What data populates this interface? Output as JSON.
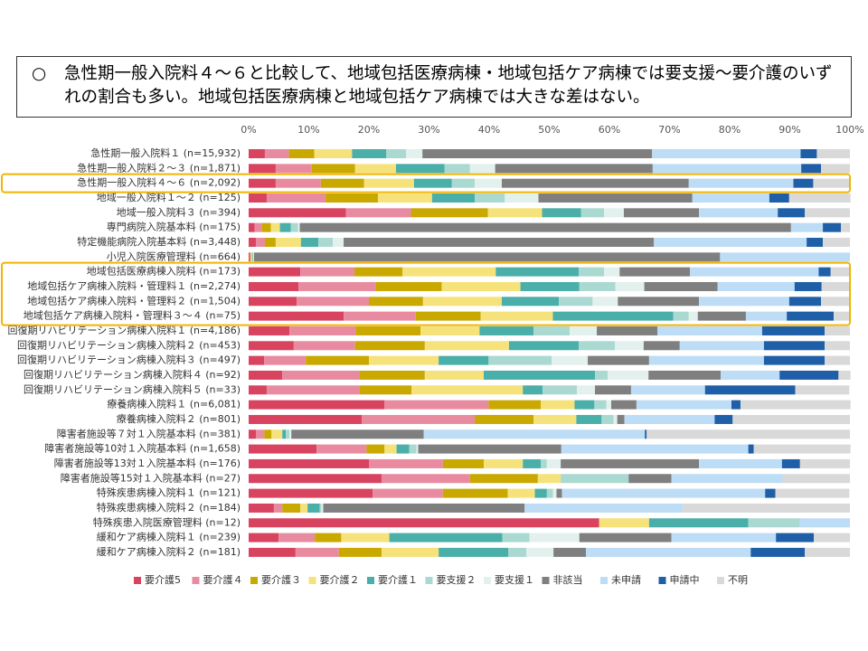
{
  "note": {
    "marker": "○",
    "text": "急性期一般入院料４～６と比較して、地域包括医療病棟・地域包括ケア病棟では要支援～要介護のいずれの割合も多い。地域包括医療病棟と地域包括ケア病棟では大きな差はない。"
  },
  "chart_data": {
    "type": "stacked_bar_horizontal",
    "categories": [
      "急性期一般入院料１ (n=15,932)",
      "急性期一般入院料２～３ (n=1,871)",
      "急性期一般入院料４～６ (n=2,092)",
      "地域一般入院料１～２ (n=125)",
      "地域一般入院料３ (n=394)",
      "専門病院入院基本料 (n=175)",
      "特定機能病院入院基本料 (n=3,448)",
      "小児入院医療管理料 (n=664)",
      "地域包括医療病棟入院料 (n=173)",
      "地域包括ケア病棟入院料・管理料１ (n=2,274)",
      "地域包括ケア病棟入院料・管理料２ (n=1,504)",
      "地域包括ケア病棟入院料・管理料３～４ (n=75)",
      "回復期リハビリテーション病棟入院料１ (n=4,186)",
      "回復期リハビリテーション病棟入院料２ (n=453)",
      "回復期リハビリテーション病棟入院料３ (n=497)",
      "回復期リハビリテーション病棟入院料４ (n=92)",
      "回復期リハビリテーション病棟入院料５ (n=33)",
      "療養病棟入院料１ (n=6,081)",
      "療養病棟入院料２ (n=801)",
      "障害者施設等７対１入院基本料 (n=381)",
      "障害者施設等10対１入院基本料 (n=1,658)",
      "障害者施設等13対１入院基本料 (n=176)",
      "障害者施設等15対１入院基本料 (n=27)",
      "特殊疾患病棟入院料１ (n=121)",
      "特殊疾患病棟入院料２ (n=184)",
      "特殊疾患入院医療管理料 (n=12)",
      "緩和ケア病棟入院料１ (n=239)",
      "緩和ケア病棟入院料２ (n=181)"
    ],
    "series": [
      {
        "name": "要介護5",
        "color": "#d8435f",
        "values": [
          2.7,
          4.5,
          4.5,
          3,
          16.2,
          1,
          1.2,
          0.2,
          8.6,
          8.3,
          8,
          15.8,
          6.8,
          7.5,
          2.6,
          5.6,
          3,
          22.6,
          18.8,
          1.2,
          11.3,
          20,
          22.1,
          20.6,
          4.2,
          58.3,
          5,
          7.8
        ]
      },
      {
        "name": "要介護４",
        "color": "#e98ba0",
        "values": [
          4,
          6,
          7.5,
          9.8,
          10.8,
          1.2,
          1.5,
          0.1,
          9,
          12.8,
          12,
          12,
          11,
          10.2,
          6.9,
          12.9,
          15.5,
          17.3,
          18.8,
          1.4,
          8.3,
          12.3,
          14.7,
          11.7,
          1.4,
          0,
          6,
          7.2
        ]
      },
      {
        "name": "要介護３",
        "color": "#c9a800",
        "values": [
          4.2,
          7.2,
          7.2,
          8.7,
          12.8,
          1.5,
          1.8,
          0.1,
          8,
          11,
          9,
          10.8,
          10.8,
          11.6,
          10.5,
          10.8,
          8.6,
          8.7,
          9.8,
          1.2,
          3,
          6.8,
          11.3,
          10.8,
          3,
          0,
          4.4,
          7.1
        ]
      },
      {
        "name": "要介護２",
        "color": "#f6e27b",
        "values": [
          6.3,
          6.8,
          8.3,
          9,
          9,
          1.5,
          4.2,
          0.2,
          15.5,
          13.1,
          13.1,
          12,
          9.8,
          14,
          11.6,
          9.8,
          18.5,
          5.6,
          7.1,
          1.8,
          2,
          6.5,
          3.8,
          4.5,
          1.2,
          8.3,
          8,
          9.5
        ]
      },
      {
        "name": "要介護１",
        "color": "#4aaea9",
        "values": [
          5.7,
          8.1,
          6.3,
          7.1,
          6.5,
          1.8,
          2.9,
          0.1,
          13.8,
          9.8,
          9.5,
          20,
          9,
          11.6,
          8.3,
          18.5,
          3.3,
          3.3,
          4.2,
          0.6,
          2.1,
          3,
          0,
          2,
          2,
          16.5,
          18.8,
          11.6
        ]
      },
      {
        "name": "要支援２",
        "color": "#a9d9d1",
        "values": [
          3.3,
          4.2,
          3.8,
          5,
          3.8,
          1.2,
          2.4,
          0.1,
          4.2,
          6,
          5.6,
          2.6,
          6,
          6,
          10.5,
          2.1,
          5.7,
          2,
          2,
          0.6,
          1.2,
          1,
          11.3,
          1,
          0.3,
          8.6,
          4.5,
          3
        ]
      },
      {
        "name": "要支援１",
        "color": "#e2f1ed",
        "values": [
          2.7,
          4.2,
          4.5,
          5.6,
          3.3,
          0.3,
          1.8,
          0.1,
          2.6,
          4.8,
          4.2,
          1.5,
          4.5,
          4.8,
          6,
          6.8,
          3,
          0.8,
          0.6,
          0.3,
          0.3,
          2.3,
          0,
          0.6,
          0.3,
          0,
          8.3,
          4.5
        ]
      },
      {
        "name": "非該当",
        "color": "#7f7f7f",
        "values": [
          38.2,
          26.2,
          31.1,
          25.6,
          12.5,
          81.7,
          51.6,
          77.5,
          11.7,
          12.2,
          13.5,
          8,
          10.1,
          6,
          10.2,
          12,
          6,
          4.2,
          1.2,
          22,
          23.8,
          23,
          7.1,
          0.9,
          33.5,
          0,
          15.3,
          5.4
        ]
      },
      {
        "name": "未申請",
        "color": "#bddcf5",
        "values": [
          24.7,
          24.7,
          17.4,
          12.8,
          13.1,
          5.3,
          25.4,
          21.6,
          21.4,
          12.8,
          15,
          6.8,
          17.4,
          14,
          19.1,
          9.8,
          12.3,
          15.8,
          15,
          36.8,
          31.1,
          13.8,
          18.5,
          33.8,
          26.3,
          8.3,
          17.4,
          27.4
        ]
      },
      {
        "name": "申請中",
        "color": "#1f5fa8",
        "values": [
          2.7,
          3.3,
          3.3,
          3.3,
          4.5,
          3,
          2.7,
          0,
          2,
          4.5,
          5.3,
          7.8,
          10.4,
          10.1,
          10.1,
          9.8,
          15,
          1.5,
          3,
          0.3,
          0.9,
          3,
          0,
          1.7,
          0,
          0,
          6.3,
          9
        ]
      },
      {
        "name": "不明",
        "color": "#d9d9d9",
        "values": [
          5.5,
          4.8,
          6,
          10.2,
          7.5,
          1.5,
          4.5,
          0,
          3.3,
          4.8,
          4.8,
          2.7,
          4.2,
          4.2,
          4.2,
          2,
          9,
          18.3,
          19.5,
          33.8,
          16.1,
          8.3,
          11.2,
          12.3,
          27.8,
          0,
          6,
          7.5
        ]
      }
    ],
    "xlim": [
      0,
      100
    ],
    "xticks": [
      {
        "value": 0,
        "label": "0%"
      },
      {
        "value": 10,
        "label": "10%"
      },
      {
        "value": 20,
        "label": "20%"
      },
      {
        "value": 30,
        "label": "30%"
      },
      {
        "value": 40,
        "label": "40%"
      },
      {
        "value": 50,
        "label": "50%"
      },
      {
        "value": 60,
        "label": "60%"
      },
      {
        "value": 70,
        "label": "70%"
      },
      {
        "value": 80,
        "label": "80%"
      },
      {
        "value": 90,
        "label": "90%"
      },
      {
        "value": 100,
        "label": "100%"
      }
    ]
  }
}
